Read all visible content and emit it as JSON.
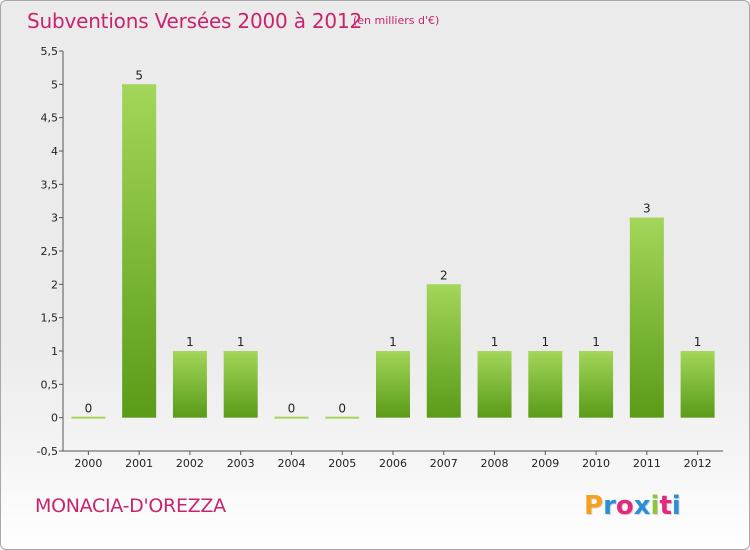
{
  "header": {
    "title": "Subventions Versées 2000 à 2012",
    "subtitle": "(en milliers d'€)"
  },
  "footer": {
    "commune": "MONACIA-D'OREZZA",
    "logo": {
      "letters": [
        "P",
        "r",
        "o",
        "x",
        "i",
        "t",
        "i"
      ],
      "colors": [
        "#f4a11f",
        "#2a8fd6",
        "#e4297c",
        "#2a8fd6",
        "#8cc63e",
        "#e4297c",
        "#2a8fd6"
      ]
    }
  },
  "chart_data": {
    "type": "bar",
    "title": "Subventions Versées 2000 à 2012",
    "subtitle": "(en milliers d'€)",
    "categories": [
      "2000",
      "2001",
      "2002",
      "2003",
      "2004",
      "2005",
      "2006",
      "2007",
      "2008",
      "2009",
      "2010",
      "2011",
      "2012"
    ],
    "values": [
      0,
      5,
      1,
      1,
      0,
      0,
      1,
      2,
      1,
      1,
      1,
      3,
      1
    ],
    "data_labels": [
      "0",
      "5",
      "1",
      "1",
      "0",
      "0",
      "1",
      "2",
      "1",
      "1",
      "1",
      "3",
      "1"
    ],
    "ylim": [
      -0.5,
      5.5
    ],
    "yticks": [
      -0.5,
      0,
      0.5,
      1,
      1.5,
      2,
      2.5,
      3,
      3.5,
      4,
      4.5,
      5,
      5.5
    ],
    "ytick_labels": [
      "-0,5",
      "0",
      "0,5",
      "1",
      "1,5",
      "2",
      "2,5",
      "3",
      "3,5",
      "4",
      "4,5",
      "5",
      "5,5"
    ],
    "grid": false,
    "legend": "none",
    "colors": {
      "bar_light": "#a3d65a",
      "bar_dark": "#5a9b18",
      "axis": "#555555"
    }
  }
}
